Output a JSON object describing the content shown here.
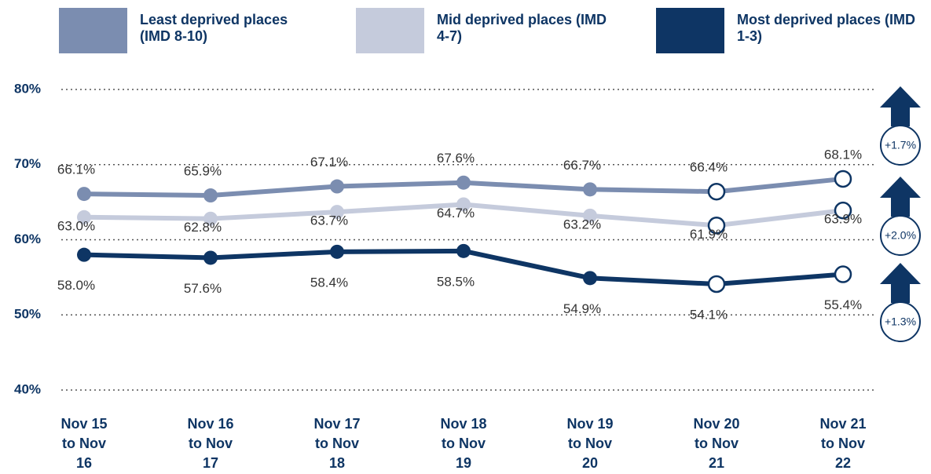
{
  "chart_data": {
    "type": "line",
    "categories": [
      "Nov 15 to Nov 16",
      "Nov 16 to Nov 17",
      "Nov 17 to Nov 18",
      "Nov 18 to Nov 19",
      "Nov 19 to Nov 20",
      "Nov 20 to Nov 21",
      "Nov 21 to Nov 22"
    ],
    "series": [
      {
        "name": "Least deprived places (IMD 8-10)",
        "color": "#7b8db0",
        "values": [
          66.1,
          65.9,
          67.1,
          67.6,
          66.7,
          66.4,
          68.1
        ],
        "value_labels": [
          "66.1%",
          "65.9%",
          "67.1%",
          "67.6%",
          "66.7%",
          "66.4%",
          "68.1%"
        ]
      },
      {
        "name": "Mid deprived places (IMD 4-7)",
        "color": "#c5cbdc",
        "values": [
          63.0,
          62.8,
          63.7,
          64.7,
          63.2,
          61.9,
          63.9
        ],
        "value_labels": [
          "63.0%",
          "62.8%",
          "63.7%",
          "64.7%",
          "63.2%",
          "61.9%",
          "63.9%"
        ]
      },
      {
        "name": "Most deprived places (IMD 1-3)",
        "color": "#0e3564",
        "values": [
          58.0,
          57.6,
          58.4,
          58.5,
          54.9,
          54.1,
          55.4
        ],
        "value_labels": [
          "58.0%",
          "57.6%",
          "58.4%",
          "58.5%",
          "54.9%",
          "54.1%",
          "55.4%"
        ]
      }
    ],
    "annotations": [
      "+1.7%",
      "+2.0%",
      "+1.3%"
    ],
    "ylim": [
      40,
      80
    ],
    "yticks": [
      {
        "value": 40,
        "label": "40%"
      },
      {
        "value": 50,
        "label": "50%"
      },
      {
        "value": 60,
        "label": "60%"
      },
      {
        "value": 70,
        "label": "70%"
      },
      {
        "value": 80,
        "label": "80%"
      }
    ],
    "grid": true
  }
}
